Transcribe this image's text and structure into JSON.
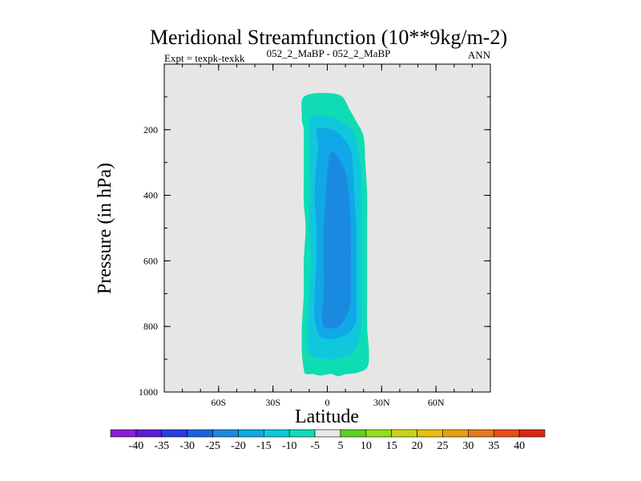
{
  "chart_data": {
    "type": "contour",
    "title": "Meridional Streamfunction (10**9kg/m-2)",
    "subtitle_left": "Expt = texpk-texkk",
    "subtitle_center": "052_2_MaBP - 052_2_MaBP",
    "subtitle_right": "ANN",
    "xlabel": "Latitude",
    "ylabel": "Pressure (in hPa)",
    "xlim": [
      -90,
      90
    ],
    "ylim": [
      1000,
      0
    ],
    "x_ticks": [
      {
        "value": -60,
        "label": "60S"
      },
      {
        "value": -30,
        "label": "30S"
      },
      {
        "value": 0,
        "label": "0"
      },
      {
        "value": 30,
        "label": "30N"
      },
      {
        "value": 60,
        "label": "60N"
      }
    ],
    "y_ticks": [
      {
        "value": 200,
        "label": "200"
      },
      {
        "value": 400,
        "label": "400"
      },
      {
        "value": 600,
        "label": "600"
      },
      {
        "value": 800,
        "label": "800"
      },
      {
        "value": 1000,
        "label": "1000"
      }
    ],
    "background_color": "#e6e6e6",
    "colorbar": {
      "labels": [
        "-40",
        "-35",
        "-30",
        "-25",
        "-20",
        "-15",
        "-10",
        "-5",
        "5",
        "10",
        "15",
        "20",
        "25",
        "30",
        "35",
        "40"
      ],
      "colors": [
        "#8a1ed6",
        "#5a1ed6",
        "#2a3ce0",
        "#1a64dc",
        "#1a8ae0",
        "#10a8e6",
        "#10c8dc",
        "#10dcb4",
        "#e8e8e8",
        "#5cd21e",
        "#96dc1e",
        "#c8d21e",
        "#e6be14",
        "#e6a014",
        "#e6781e",
        "#e65014",
        "#dc2814"
      ]
    },
    "contours": [
      {
        "level": "-10 to -5",
        "color": "#10dcb4",
        "points": [
          [
            -14,
            110
          ],
          [
            -10,
            92
          ],
          [
            0,
            88
          ],
          [
            8,
            98
          ],
          [
            12,
            135
          ],
          [
            16,
            175
          ],
          [
            20,
            220
          ],
          [
            21,
            300
          ],
          [
            22,
            400
          ],
          [
            22,
            500
          ],
          [
            22,
            600
          ],
          [
            22,
            700
          ],
          [
            22,
            800
          ],
          [
            23,
            880
          ],
          [
            22,
            925
          ],
          [
            16,
            942
          ],
          [
            10,
            946
          ],
          [
            6,
            952
          ],
          [
            2,
            945
          ],
          [
            -4,
            950
          ],
          [
            -8,
            945
          ],
          [
            -12,
            945
          ],
          [
            -13,
            930
          ],
          [
            -14,
            880
          ],
          [
            -14,
            800
          ],
          [
            -13,
            700
          ],
          [
            -13,
            600
          ],
          [
            -12,
            500
          ],
          [
            -13,
            420
          ],
          [
            -13,
            340
          ],
          [
            -13,
            260
          ],
          [
            -13,
            200
          ],
          [
            -14,
            175
          ],
          [
            -14,
            160
          ]
        ]
      },
      {
        "level": "-15 to -10",
        "color": "#10c8dc",
        "points": [
          [
            -10,
            170
          ],
          [
            -6,
            155
          ],
          [
            2,
            160
          ],
          [
            8,
            175
          ],
          [
            14,
            200
          ],
          [
            17,
            260
          ],
          [
            19,
            350
          ],
          [
            19,
            450
          ],
          [
            19,
            550
          ],
          [
            19,
            650
          ],
          [
            19,
            750
          ],
          [
            18,
            830
          ],
          [
            14,
            880
          ],
          [
            8,
            895
          ],
          [
            2,
            900
          ],
          [
            -4,
            896
          ],
          [
            -10,
            880
          ],
          [
            -11,
            800
          ],
          [
            -10,
            700
          ],
          [
            -9,
            600
          ],
          [
            -10,
            500
          ],
          [
            -10,
            400
          ],
          [
            -10,
            300
          ],
          [
            -10,
            220
          ]
        ]
      },
      {
        "level": "-20 to -15",
        "color": "#10a8e6",
        "points": [
          [
            -6,
            200
          ],
          [
            -1,
            195
          ],
          [
            6,
            210
          ],
          [
            12,
            250
          ],
          [
            14,
            300
          ],
          [
            15,
            400
          ],
          [
            16,
            500
          ],
          [
            16,
            600
          ],
          [
            16,
            700
          ],
          [
            16,
            780
          ],
          [
            12,
            820
          ],
          [
            6,
            835
          ],
          [
            0,
            838
          ],
          [
            -4,
            830
          ],
          [
            -7,
            780
          ],
          [
            -7,
            700
          ],
          [
            -6,
            600
          ],
          [
            -6,
            500
          ],
          [
            -7,
            400
          ],
          [
            -6,
            300
          ],
          [
            -5,
            250
          ]
        ]
      },
      {
        "level": "-25 to -20",
        "color": "#1a8ae0",
        "points": [
          [
            2,
            270
          ],
          [
            6,
            285
          ],
          [
            10,
            330
          ],
          [
            12,
            400
          ],
          [
            13,
            500
          ],
          [
            13,
            600
          ],
          [
            13,
            690
          ],
          [
            12,
            750
          ],
          [
            8,
            790
          ],
          [
            4,
            805
          ],
          [
            -2,
            800
          ],
          [
            -3,
            760
          ],
          [
            -2,
            700
          ],
          [
            -2,
            600
          ],
          [
            -2,
            500
          ],
          [
            -1,
            420
          ],
          [
            0,
            330
          ]
        ]
      }
    ]
  }
}
